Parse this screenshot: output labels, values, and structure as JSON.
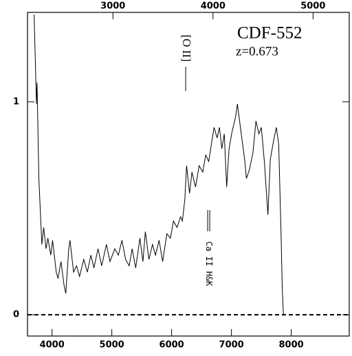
{
  "chart_data": {
    "type": "line",
    "title": "CDF-552",
    "subtitle": "z=0.673",
    "annotations": [
      {
        "text": "[O II]",
        "x": 6235
      },
      {
        "text": "Ca II H&K",
        "x": 6620
      }
    ],
    "x": [
      3700,
      3740,
      3750,
      3780,
      3830,
      3860,
      3900,
      3930,
      3980,
      4010,
      4070,
      4100,
      4150,
      4200,
      4230,
      4280,
      4300,
      4360,
      4410,
      4460,
      4530,
      4590,
      4650,
      4700,
      4770,
      4830,
      4910,
      4970,
      5050,
      5110,
      5170,
      5230,
      5290,
      5340,
      5400,
      5470,
      5520,
      5560,
      5620,
      5680,
      5730,
      5790,
      5850,
      5920,
      5980,
      6030,
      6090,
      6150,
      6180,
      6220,
      6250,
      6300,
      6340,
      6400,
      6460,
      6520,
      6570,
      6620,
      6670,
      6710,
      6760,
      6800,
      6840,
      6880,
      6920,
      6960,
      7010,
      7070,
      7100,
      7150,
      7220,
      7250,
      7300,
      7360,
      7410,
      7460,
      7500,
      7550,
      7610,
      7650,
      7700,
      7750,
      7790,
      7830,
      7850,
      7870
    ],
    "values": [
      1.41,
      0.99,
      1.09,
      0.64,
      0.33,
      0.41,
      0.31,
      0.36,
      0.28,
      0.35,
      0.2,
      0.17,
      0.25,
      0.14,
      0.1,
      0.31,
      0.35,
      0.2,
      0.23,
      0.18,
      0.26,
      0.2,
      0.28,
      0.22,
      0.31,
      0.23,
      0.33,
      0.25,
      0.31,
      0.28,
      0.35,
      0.26,
      0.23,
      0.31,
      0.22,
      0.36,
      0.25,
      0.39,
      0.26,
      0.33,
      0.28,
      0.35,
      0.25,
      0.38,
      0.36,
      0.44,
      0.41,
      0.46,
      0.44,
      0.54,
      0.7,
      0.57,
      0.67,
      0.6,
      0.7,
      0.67,
      0.75,
      0.72,
      0.81,
      0.88,
      0.83,
      0.88,
      0.78,
      0.85,
      0.6,
      0.78,
      0.86,
      0.93,
      0.99,
      0.88,
      0.73,
      0.64,
      0.68,
      0.76,
      0.91,
      0.85,
      0.88,
      0.72,
      0.47,
      0.73,
      0.81,
      0.88,
      0.8,
      0.38,
      0.12,
      0
    ],
    "color": "#000000",
    "xlim": [
      3590,
      8970
    ],
    "xticks": [
      4000,
      5000,
      6000,
      7000,
      8000
    ],
    "x2lim": [
      2146,
      5362
    ],
    "x2ticks": [
      3000,
      4000,
      5000
    ],
    "ylim": [
      -0.1,
      1.42
    ],
    "yticks": [
      0,
      1
    ],
    "reference_lines": [
      {
        "y": 0,
        "style": "dashed"
      }
    ]
  }
}
